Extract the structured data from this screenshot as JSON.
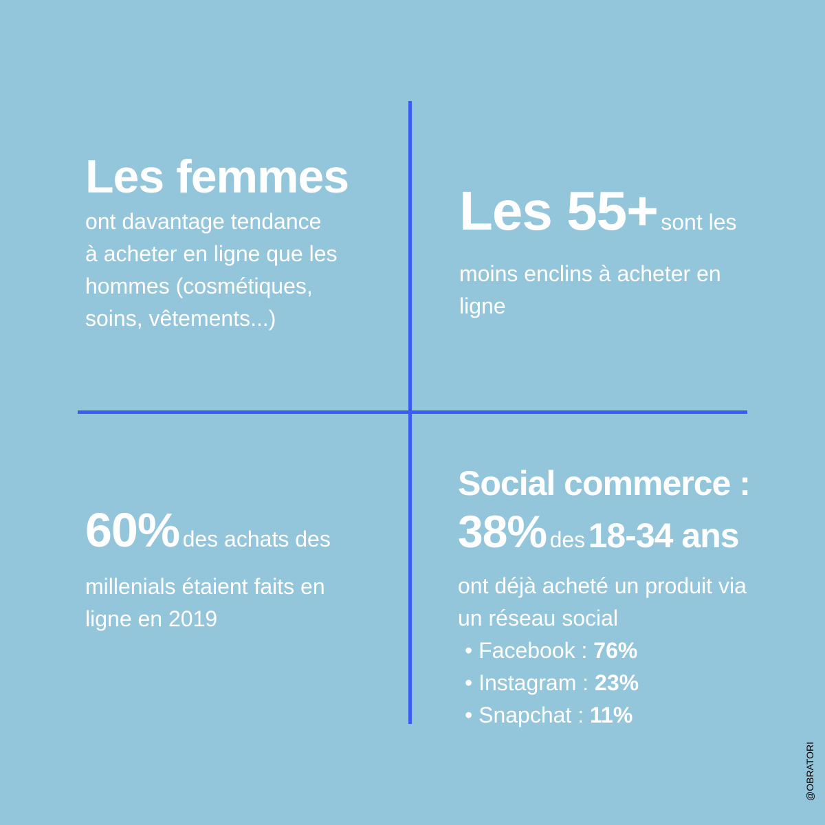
{
  "quadrants": [
    {
      "heading": "Les femmes",
      "lines": [
        "ont davantage tendance",
        "à acheter en ligne que les",
        "hommes (cosmétiques,",
        "soins, vêtements...)"
      ]
    },
    {
      "heading": "Les 55+",
      "lines": [
        "sont les",
        "moins enclins à acheter en",
        "ligne"
      ]
    },
    {
      "heading": "60%",
      "lines": [
        "des achats des",
        "millenials étaient faits en",
        "ligne en 2019"
      ]
    },
    {
      "heading": "Social commerce :",
      "stat": "38%",
      "connector": "des",
      "group": "18-34 ans",
      "lines": [
        "ont déjà acheté un produit via",
        "un réseau social"
      ],
      "items": [
        {
          "name": "Facebook :",
          "value": "76%"
        },
        {
          "name": "Instagram :",
          "value": "23%"
        },
        {
          "name": "Snapchat :",
          "value": "11%"
        }
      ]
    }
  ],
  "credit": "@OBRATORI"
}
